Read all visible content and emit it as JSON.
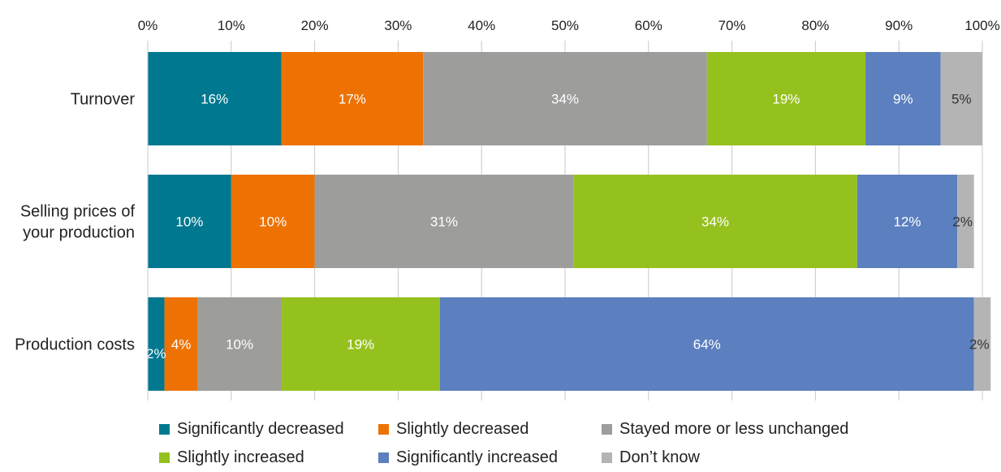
{
  "chart_data": {
    "type": "bar",
    "orientation": "horizontal",
    "stacked": true,
    "percent_stacked": true,
    "title": "",
    "xlabel": "",
    "ylabel": "",
    "xlim": [
      0,
      100
    ],
    "x_ticks": [
      "0%",
      "10%",
      "20%",
      "30%",
      "40%",
      "50%",
      "60%",
      "70%",
      "80%",
      "90%",
      "100%"
    ],
    "x_axis_position": "top",
    "grid": true,
    "legend_position": "bottom",
    "categories": [
      [
        "Turnover"
      ],
      [
        "Selling prices of",
        "your production"
      ],
      [
        "Production costs"
      ]
    ],
    "series": [
      {
        "name": "Significantly decreased",
        "color": "#007890",
        "values": [
          16,
          10,
          2
        ],
        "labels": [
          "16%",
          "10%",
          "2%"
        ]
      },
      {
        "name": "Slightly decreased",
        "color": "#ED7203",
        "values": [
          17,
          10,
          4
        ],
        "labels": [
          "17%",
          "10%",
          "4%"
        ]
      },
      {
        "name": "Stayed more or less unchanged",
        "color": "#9D9D9C",
        "values": [
          34,
          31,
          10
        ],
        "labels": [
          "34%",
          "31%",
          "10%"
        ]
      },
      {
        "name": "Slightly increased",
        "color": "#95C11F",
        "values": [
          19,
          34,
          19
        ],
        "labels": [
          "19%",
          "34%",
          "19%"
        ]
      },
      {
        "name": "Significantly increased",
        "color": "#5B7FBF",
        "values": [
          9,
          12,
          64
        ],
        "labels": [
          "9%",
          "12%",
          "64%"
        ]
      },
      {
        "name": "Don’t know",
        "color": "#B4B4B4",
        "values": [
          5,
          2,
          2
        ],
        "labels": [
          "5%",
          "2%",
          "2%"
        ]
      }
    ]
  }
}
